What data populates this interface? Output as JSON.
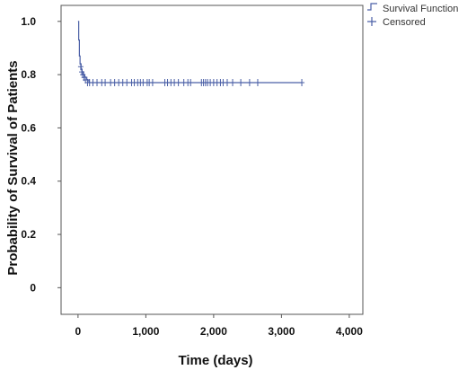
{
  "chart_data": {
    "type": "line",
    "title": "",
    "xlabel": "Time (days)",
    "ylabel": "Probability of Survival of Patients",
    "xlim": [
      -250,
      4200
    ],
    "ylim": [
      -0.1,
      1.06
    ],
    "x_ticks": [
      0,
      1000,
      2000,
      3000,
      4000
    ],
    "x_tick_labels": [
      "0",
      "1,000",
      "2,000",
      "3,000",
      "4,000"
    ],
    "y_ticks": [
      0,
      0.2,
      0.4,
      0.6,
      0.8,
      1.0
    ],
    "y_tick_labels": [
      "0",
      "0.2",
      "0.4",
      "0.6",
      "0.8",
      "1.0"
    ],
    "grid": false,
    "legend_placement": "top-right outside",
    "series": [
      {
        "name": "Survival Function",
        "color": "#4a5fa6",
        "step": true,
        "x": [
          0,
          10,
          20,
          30,
          45,
          60,
          80,
          100,
          130,
          160,
          3300
        ],
        "y": [
          1.0,
          0.93,
          0.87,
          0.84,
          0.82,
          0.81,
          0.8,
          0.79,
          0.78,
          0.77,
          0.77
        ]
      },
      {
        "name": "Censored",
        "color": "#4a5fa6",
        "marker": "+",
        "x": [
          40,
          55,
          70,
          90,
          110,
          140,
          170,
          220,
          280,
          350,
          400,
          480,
          540,
          600,
          660,
          720,
          790,
          830,
          880,
          920,
          960,
          1020,
          1050,
          1100,
          1280,
          1320,
          1370,
          1420,
          1480,
          1560,
          1620,
          1660,
          1820,
          1850,
          1880,
          1910,
          1950,
          2000,
          2050,
          2100,
          2140,
          2200,
          2280,
          2400,
          2530,
          2650,
          3300
        ],
        "y": [
          0.83,
          0.81,
          0.8,
          0.79,
          0.78,
          0.77,
          0.77,
          0.77,
          0.77,
          0.77,
          0.77,
          0.77,
          0.77,
          0.77,
          0.77,
          0.77,
          0.77,
          0.77,
          0.77,
          0.77,
          0.77,
          0.77,
          0.77,
          0.77,
          0.77,
          0.77,
          0.77,
          0.77,
          0.77,
          0.77,
          0.77,
          0.77,
          0.77,
          0.77,
          0.77,
          0.77,
          0.77,
          0.77,
          0.77,
          0.77,
          0.77,
          0.77,
          0.77,
          0.77,
          0.77,
          0.77,
          0.77
        ]
      }
    ]
  },
  "legend": {
    "survival_label": "Survival Function",
    "censored_label": "Censored"
  }
}
